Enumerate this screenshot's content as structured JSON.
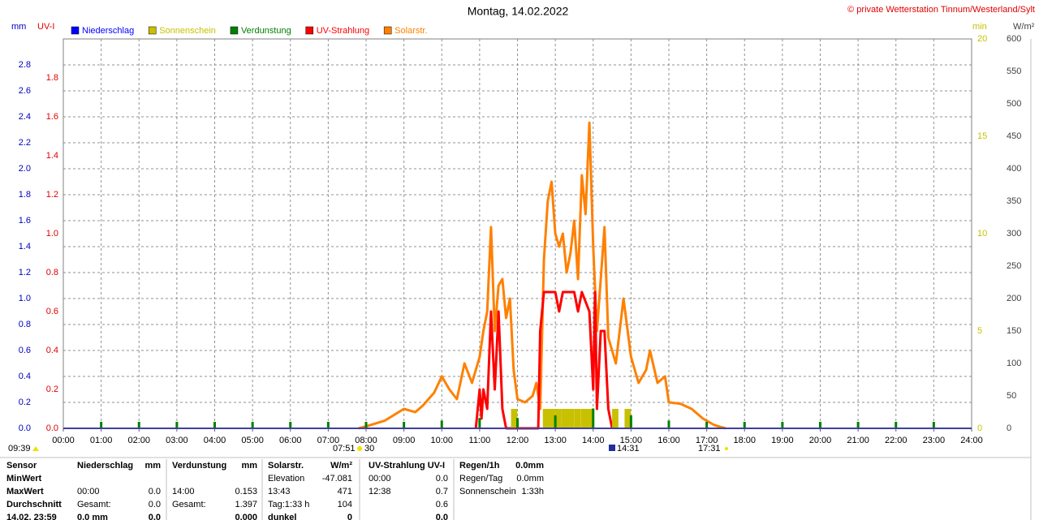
{
  "chart_data": {
    "type": "combo",
    "title": "Montag, 14.02.2022",
    "source": "© private Wetterstation Tinnum/Westerland/Sylt",
    "ylabel": "mm",
    "y2label": "UV-I",
    "y3label": "min",
    "y4label": "W/m²",
    "grid": true,
    "xlim": [
      0,
      24
    ],
    "xticks": [
      {
        "value": 0,
        "label": "00:00"
      },
      {
        "value": 1,
        "label": "01:00"
      },
      {
        "value": 2,
        "label": "02:00"
      },
      {
        "value": 3,
        "label": "03:00"
      },
      {
        "value": 4,
        "label": "04:00"
      },
      {
        "value": 5,
        "label": "05:00"
      },
      {
        "value": 6,
        "label": "06:00"
      },
      {
        "value": 7,
        "label": "07:00"
      },
      {
        "value": 8,
        "label": "08:00"
      },
      {
        "value": 9,
        "label": "09:00"
      },
      {
        "value": 10,
        "label": "10:00"
      },
      {
        "value": 11,
        "label": "11:00"
      },
      {
        "value": 12,
        "label": "12:00"
      },
      {
        "value": 13,
        "label": "13:00"
      },
      {
        "value": 14,
        "label": "14:00"
      },
      {
        "value": 15,
        "label": "15:00"
      },
      {
        "value": 16,
        "label": "16:00"
      },
      {
        "value": 17,
        "label": "17:00"
      },
      {
        "value": 18,
        "label": "18:00"
      },
      {
        "value": 19,
        "label": "19:00"
      },
      {
        "value": 20,
        "label": "20:00"
      },
      {
        "value": 21,
        "label": "21:00"
      },
      {
        "value": 22,
        "label": "22:00"
      },
      {
        "value": 23,
        "label": "23:00"
      },
      {
        "value": 24,
        "label": "24:00"
      }
    ],
    "ylim": [
      0,
      3
    ],
    "yticks": [
      {
        "value": 0,
        "label": "0.0"
      },
      0.2,
      0.4,
      0.6,
      0.8,
      {
        "value": 1,
        "label": "1.0"
      },
      1.2,
      1.4,
      1.6,
      1.8,
      {
        "value": 2,
        "label": "2.0"
      },
      2.2,
      2.4,
      2.6,
      2.8
    ],
    "y2lim": [
      0,
      2
    ],
    "y2ticks": [
      {
        "value": 0,
        "label": "0.0"
      },
      0.2,
      0.4,
      0.6,
      0.8,
      {
        "value": 1,
        "label": "1.0"
      },
      1.2,
      1.4,
      1.6,
      1.8
    ],
    "y3lim": [
      0,
      20
    ],
    "y3ticks": [
      0,
      5,
      10,
      15,
      20
    ],
    "y4lim": [
      0,
      600
    ],
    "y4ticks": [
      0,
      50,
      100,
      150,
      200,
      250,
      300,
      350,
      400,
      450,
      500,
      550,
      600
    ],
    "series": [
      {
        "name": "Niederschlag",
        "color": "#0000ff",
        "type": "bar",
        "axis": "y",
        "x": [],
        "values": []
      },
      {
        "name": "Sonnenschein",
        "color": "#c8c000",
        "type": "bar",
        "axis": "y3",
        "x": [
          11.83,
          12.67,
          12.83,
          13.0,
          13.17,
          13.33,
          13.5,
          13.67,
          13.83,
          14.5,
          14.83
        ],
        "values": [
          1,
          1,
          1,
          1,
          1,
          1,
          1,
          1,
          1,
          1,
          1
        ]
      },
      {
        "name": "Verdunstung",
        "color": "#008000",
        "type": "bar",
        "axis": "y",
        "x": [
          1,
          2,
          3,
          4,
          5,
          6,
          7,
          8,
          9,
          10,
          11,
          12,
          13,
          14,
          15,
          16,
          17,
          18,
          19,
          20,
          21,
          22,
          23
        ],
        "values": [
          0.05,
          0.05,
          0.05,
          0.05,
          0.05,
          0.05,
          0.05,
          0.05,
          0.05,
          0.06,
          0.08,
          0.08,
          0.1,
          0.153,
          0.1,
          0.06,
          0.05,
          0.05,
          0.05,
          0.05,
          0.05,
          0.05,
          0.05
        ]
      },
      {
        "name": "UV-Strahlung",
        "color": "#ff0000",
        "type": "line",
        "axis": "y2",
        "x": [
          10.9,
          11.0,
          11.05,
          11.1,
          11.2,
          11.3,
          11.4,
          11.5,
          11.6,
          11.7,
          12.55,
          12.6,
          12.7,
          13.0,
          13.1,
          13.2,
          13.5,
          13.6,
          13.7,
          13.9,
          14.0,
          14.05,
          14.1,
          14.2,
          14.3,
          14.4,
          14.5
        ],
        "values": [
          0,
          0.2,
          0.05,
          0.2,
          0.1,
          0.6,
          0.2,
          0.6,
          0.1,
          0,
          0,
          0.5,
          0.7,
          0.7,
          0.6,
          0.7,
          0.7,
          0.6,
          0.7,
          0.6,
          0.2,
          0.7,
          0.1,
          0.5,
          0.5,
          0.1,
          0
        ]
      },
      {
        "name": "Solarstr.",
        "color": "#ff8000",
        "type": "line",
        "axis": "y4",
        "x": [
          7.8,
          8.0,
          8.5,
          9.0,
          9.3,
          9.5,
          9.8,
          10.0,
          10.2,
          10.4,
          10.6,
          10.8,
          11.0,
          11.1,
          11.2,
          11.3,
          11.4,
          11.5,
          11.6,
          11.7,
          11.8,
          11.9,
          12.0,
          12.2,
          12.4,
          12.5,
          12.6,
          12.7,
          12.8,
          12.9,
          13.0,
          13.1,
          13.2,
          13.3,
          13.4,
          13.5,
          13.6,
          13.7,
          13.8,
          13.9,
          14.0,
          14.1,
          14.2,
          14.3,
          14.4,
          14.6,
          14.8,
          15.0,
          15.2,
          15.4,
          15.5,
          15.7,
          15.9,
          16.0,
          16.3,
          16.6,
          16.9,
          17.2,
          17.5
        ],
        "values": [
          0,
          3,
          12,
          30,
          25,
          35,
          55,
          80,
          60,
          45,
          100,
          70,
          110,
          150,
          180,
          310,
          150,
          220,
          230,
          170,
          200,
          90,
          45,
          40,
          50,
          70,
          30,
          260,
          350,
          380,
          300,
          280,
          300,
          240,
          270,
          320,
          230,
          390,
          330,
          471,
          280,
          150,
          230,
          310,
          140,
          100,
          200,
          110,
          70,
          90,
          120,
          70,
          80,
          40,
          38,
          30,
          15,
          5,
          0
        ]
      }
    ],
    "annotations": [
      "09:39",
      "07:51",
      "30",
      "14:31",
      "17:31"
    ]
  },
  "table": {
    "rows": [
      [
        "Sensor",
        "Niederschlag",
        "mm",
        "Verdunstung",
        "mm",
        "Solarstr.",
        "W/m²",
        "UV-Strahlung UV-I",
        null,
        "Regen/1h",
        "0.0mm"
      ],
      [
        "MinWert",
        null,
        null,
        null,
        null,
        "Elevation",
        "-47.081",
        "00:00",
        "0.0",
        "Regen/Tag",
        "0.0mm"
      ],
      [
        "MaxWert",
        "00:00",
        "0.0",
        "14:00",
        "0.153",
        "13:43",
        "471",
        "12:38",
        "0.7",
        "Sonnenschein",
        "1:33h"
      ],
      [
        "Durchschnitt",
        "Gesamt:",
        "0.0",
        "Gesamt:",
        "1.397",
        "Tag:1:33 h",
        "104",
        null,
        "0.6",
        null,
        null
      ],
      [
        "14.02. 23:59",
        "0.0 mm",
        "0.0",
        null,
        "0.000",
        "dunkel",
        "0",
        null,
        "0.0",
        null,
        null
      ]
    ]
  }
}
